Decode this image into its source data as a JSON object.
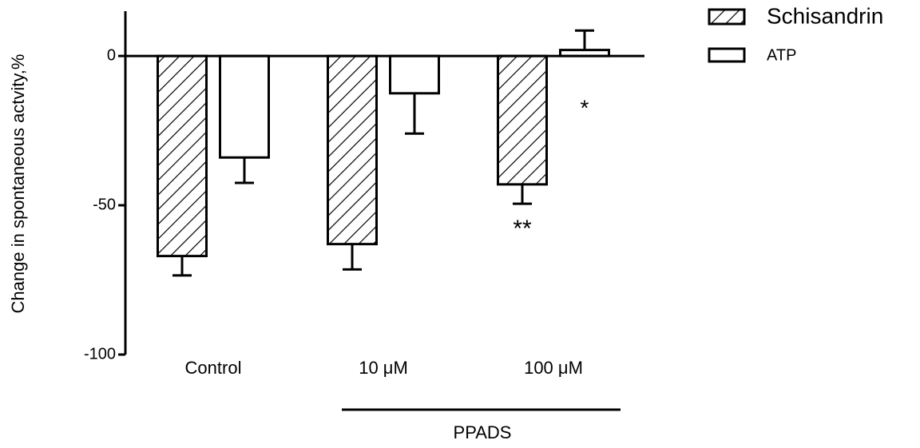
{
  "chart_data": {
    "type": "bar",
    "y_label": "Change in spontaneous actvity,%",
    "categories": [
      "Control",
      "10 μM",
      "100 μM"
    ],
    "group_label": "PPADS",
    "series": [
      {
        "name": "Schisandrin",
        "color": "#000000",
        "hatch": true,
        "values": [
          -67,
          -63,
          -43
        ],
        "errors": [
          6.5,
          8.5,
          6.5
        ]
      },
      {
        "name": "ATP",
        "color": "#ffffff",
        "hatch": false,
        "values": [
          -34,
          -12.5,
          2
        ],
        "errors": [
          8.5,
          13.5,
          6.5
        ]
      }
    ],
    "annotations": [
      "**",
      "*"
    ],
    "ylim": [
      -100,
      15
    ],
    "yticks": [
      0,
      -50,
      -100
    ],
    "legend": "top-right"
  }
}
